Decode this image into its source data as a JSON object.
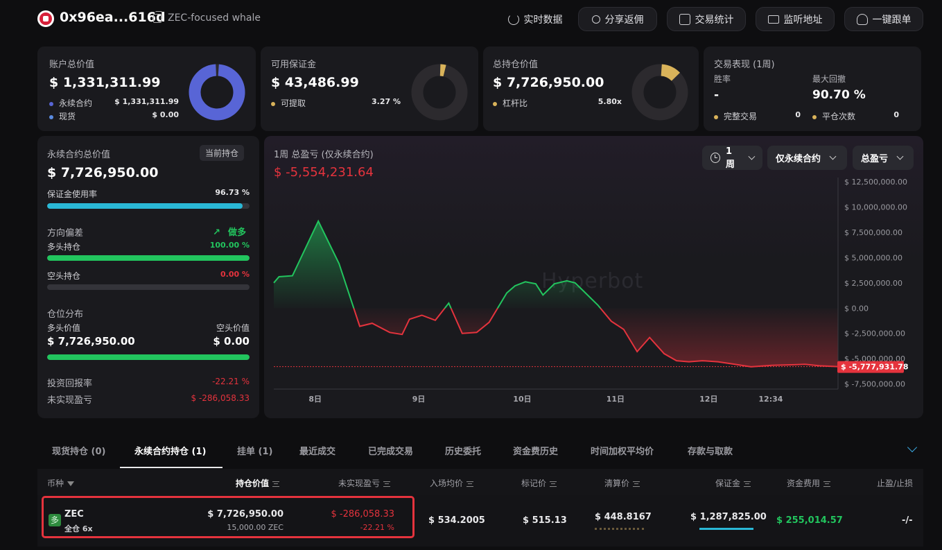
{
  "header": {
    "address": "0x96ea...616d",
    "tagline": "ZEC-focused whale",
    "buttons": [
      "实时数据",
      "分享返佣",
      "交易统计",
      "监听地址",
      "一键跟单"
    ]
  },
  "summary": {
    "account": {
      "label": "账户总价值",
      "value": "$ 1,331,311.99",
      "perp_label": "永续合约",
      "perp_value": "$ 1,331,311.99",
      "spot_label": "现货",
      "spot_value": "$ 0.00",
      "perp_share": 1.0
    },
    "margin": {
      "label": "可用保证金",
      "value": "$ 43,486.99",
      "withdraw_label": "可提取",
      "withdraw_value": "3.27 %",
      "share": 0.0327
    },
    "position": {
      "label": "总持仓价值",
      "value": "$ 7,726,950.00",
      "lev_label": "杠杆比",
      "lev_value": "5.80x",
      "share": 0.116
    },
    "performance": {
      "label": "交易表现 (1周)",
      "winrate_label": "胜率",
      "winrate_value": "-",
      "drawdown_label": "最大回撤",
      "drawdown_value": "90.70 %",
      "trades_label": "完整交易",
      "trades_value": "0",
      "close_label": "平仓次数",
      "close_value": "0"
    }
  },
  "left_panel": {
    "title": "永续合约总价值",
    "chip": "当前持仓",
    "value": "$ 7,726,950.00",
    "margin_usage_label": "保证金使用率",
    "margin_usage_value": "96.73 %",
    "margin_usage": 0.9673,
    "bias_label": "方向偏差",
    "bias_value": "做多",
    "long_label": "多头持仓",
    "long_value": "100.00 %",
    "long_share": 1.0,
    "short_label": "空头持仓",
    "short_value": "0.00 %",
    "short_share": 0.0,
    "dist_label": "仓位分布",
    "long_val_label": "多头价值",
    "short_val_label": "空头价值",
    "long_val": "$ 7,726,950.00",
    "short_val": "$ 0.00",
    "roi_label": "投资回报率",
    "roi_value": "-22.21 %",
    "upnl_label": "未实现盈亏",
    "upnl_value": "$ -286,058.33"
  },
  "chart_panel": {
    "title": "1周 总盈亏 (仅永续合约)",
    "total": "$ -5,554,231.64",
    "period": "1周",
    "scope": "仅永续合约",
    "metric": "总盈亏",
    "watermark": "Hyperbot",
    "last_label": "$ -5,777,931.78"
  },
  "chart_data": {
    "type": "area",
    "title": "1周 总盈亏 (仅永续合约)",
    "y_ticks": [
      "$ 12,500,000.00",
      "$ 10,000,000.00",
      "$ 7,500,000.00",
      "$ 5,000,000.00",
      "$ 2,500,000.00",
      "$ 0.00",
      "$ -2,500,000.00",
      "$ -5,000,000.00",
      "$ -7,500,000.00"
    ],
    "y_tick_values": [
      12500000,
      10000000,
      7500000,
      5000000,
      2500000,
      0,
      -2500000,
      -5000000,
      -7500000
    ],
    "x_ticks": [
      "8日",
      "9日",
      "10日",
      "11日",
      "12日",
      "12:34"
    ],
    "x_tick_positions": [
      0.4,
      1.4,
      2.4,
      3.3,
      4.2,
      4.8
    ],
    "ylim": [
      -8000000,
      12900000
    ],
    "xlim": [
      0,
      5.45
    ],
    "x": [
      0,
      0.05,
      0.18,
      0.43,
      0.63,
      0.83,
      0.95,
      1.12,
      1.24,
      1.31,
      1.43,
      1.56,
      1.69,
      1.82,
      1.96,
      2.08,
      2.25,
      2.33,
      2.43,
      2.53,
      2.6,
      2.71,
      2.83,
      2.91,
      3.0,
      3.13,
      3.26,
      3.38,
      3.51,
      3.63,
      3.77,
      3.89,
      4.01,
      4.14,
      4.29,
      4.42,
      4.61,
      4.81,
      5.0,
      5.13,
      5.27,
      5.45
    ],
    "y": [
      2500000,
      3100000,
      3200000,
      8600000,
      4400000,
      -1800000,
      -1500000,
      -2400000,
      -2600000,
      -1100000,
      -700000,
      -1200000,
      500000,
      -2500000,
      -2400000,
      -1400000,
      1500000,
      2200000,
      2600000,
      2400000,
      1300000,
      2400000,
      2700000,
      2500000,
      1600000,
      300000,
      -1300000,
      -2100000,
      -4300000,
      -2900000,
      -4500000,
      -5200000,
      -5300000,
      -5200000,
      -5300000,
      -5500000,
      -5800000,
      -5650000,
      -5600000,
      -5550000,
      -5700000,
      -5780000
    ],
    "last_value": -5777931.78
  },
  "tabs": [
    "现货持仓 (0)",
    "永续合约持仓 (1)",
    "挂单 (1)",
    "最近成交",
    "已完成交易",
    "历史委托",
    "资金费历史",
    "时间加权平均价",
    "存款与取款"
  ],
  "table": {
    "headers": [
      "币种",
      "持仓价值",
      "未实现盈亏",
      "入场均价",
      "标记价",
      "清算价",
      "保证金",
      "资金费用",
      "止盈/止损"
    ],
    "row": {
      "side": "多",
      "coin": "ZEC",
      "mode": "全仓 6x",
      "value": "$ 7,726,950.00",
      "size": "15,000.00 ZEC",
      "upnl": "$ -286,058.33",
      "upnl_pct": "-22.21 %",
      "entry": "$ 534.2005",
      "mark": "$ 515.13",
      "liq": "$ 448.8167",
      "margin": "$ 1,287,825.00",
      "funding": "$ 255,014.57",
      "tpsl": "-/-"
    }
  },
  "colors": {
    "green": "#22c55e",
    "red": "#e5333d",
    "blue": "#5865d6",
    "gold": "#d9b35a",
    "teal": "#2ab8d6"
  }
}
